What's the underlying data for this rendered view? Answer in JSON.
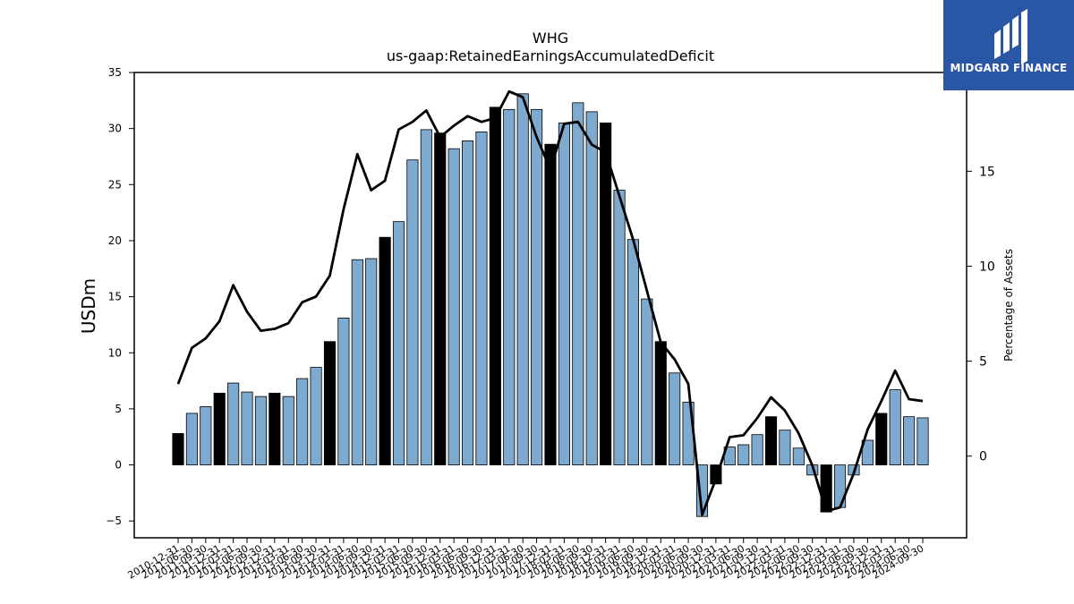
{
  "logo": {
    "text": "MIDGARD FINANCE",
    "background": "#2a56a6"
  },
  "chart_data": {
    "type": "bar",
    "title": "WHG",
    "subtitle": "us-gaap:RetainedEarningsAccumulatedDeficit",
    "ylabel": "USDm",
    "y2label": "Percentage of Assets",
    "ylim": [
      -6.5,
      35
    ],
    "y2lim": [
      -4.3,
      20.2
    ],
    "yticks": [
      -5,
      0,
      5,
      10,
      15,
      20,
      25,
      30,
      35
    ],
    "y2ticks": [
      0,
      5,
      10,
      15
    ],
    "categories": [
      "2010-12-31",
      "2011-06-30",
      "2011-09-30",
      "2011-12-31",
      "2012-03-31",
      "2012-06-30",
      "2012-09-30",
      "2012-12-31",
      "2013-03-31",
      "2013-06-30",
      "2013-09-30",
      "2013-12-31",
      "2014-03-31",
      "2014-06-30",
      "2014-09-30",
      "2014-12-31",
      "2015-03-31",
      "2015-06-30",
      "2015-09-30",
      "2015-12-31",
      "2016-03-31",
      "2016-06-30",
      "2016-09-30",
      "2016-12-31",
      "2017-03-31",
      "2017-06-30",
      "2017-09-30",
      "2017-12-31",
      "2018-03-31",
      "2018-06-30",
      "2018-09-30",
      "2018-12-31",
      "2019-03-31",
      "2019-06-30",
      "2019-09-30",
      "2019-12-31",
      "2020-03-31",
      "2020-06-30",
      "2020-09-30",
      "2020-12-31",
      "2021-03-31",
      "2021-06-30",
      "2021-09-30",
      "2021-12-31",
      "2022-03-31",
      "2022-06-30",
      "2022-09-30",
      "2022-12-31",
      "2023-03-31",
      "2023-06-30",
      "2023-09-30",
      "2023-12-31",
      "2024-03-31",
      "2024-06-30",
      "2024-09-30"
    ],
    "series": [
      {
        "kind": "bar",
        "values": [
          2.8,
          4.6,
          5.2,
          6.4,
          7.3,
          6.5,
          6.1,
          6.4,
          6.1,
          7.7,
          8.7,
          11.0,
          13.1,
          18.3,
          18.4,
          20.3,
          21.7,
          27.2,
          29.9,
          29.6,
          28.2,
          28.9,
          29.7,
          31.9,
          31.7,
          33.1,
          31.7,
          28.6,
          30.5,
          32.3,
          31.5,
          30.5,
          24.5,
          20.1,
          14.8,
          11.0,
          8.2,
          5.6,
          -4.6,
          -1.7,
          1.6,
          1.8,
          2.7,
          4.3,
          3.1,
          1.5,
          -0.9,
          -4.2,
          -3.8,
          -0.9,
          2.2,
          4.6,
          6.7,
          4.3,
          4.2
        ],
        "highlight": [
          true,
          false,
          false,
          true,
          false,
          false,
          false,
          true,
          false,
          false,
          false,
          true,
          false,
          false,
          false,
          true,
          false,
          false,
          false,
          true,
          false,
          false,
          false,
          true,
          false,
          false,
          false,
          true,
          false,
          false,
          false,
          true,
          false,
          false,
          false,
          true,
          false,
          false,
          false,
          true,
          false,
          false,
          false,
          true,
          false,
          false,
          false,
          true,
          false,
          false,
          false,
          true,
          false,
          false,
          false
        ],
        "color": "#7eaad0",
        "highlight_color": "#000000"
      },
      {
        "kind": "line",
        "axis": "right",
        "values": [
          3.8,
          5.7,
          6.2,
          7.1,
          9.0,
          7.6,
          6.6,
          6.7,
          7.0,
          8.1,
          8.4,
          9.5,
          13.0,
          15.9,
          14.0,
          14.5,
          17.2,
          17.6,
          18.2,
          16.8,
          17.4,
          17.9,
          17.6,
          17.8,
          19.2,
          18.9,
          16.8,
          15.1,
          17.5,
          17.6,
          16.4,
          16.0,
          13.7,
          11.4,
          8.7,
          6.0,
          5.1,
          3.8,
          -3.1,
          -1.2,
          1.0,
          1.1,
          2.0,
          3.1,
          2.4,
          1.2,
          -0.5,
          -2.9,
          -2.7,
          -0.9,
          1.4,
          2.9,
          4.5,
          3.0,
          2.9
        ],
        "color": "#000000"
      }
    ]
  }
}
